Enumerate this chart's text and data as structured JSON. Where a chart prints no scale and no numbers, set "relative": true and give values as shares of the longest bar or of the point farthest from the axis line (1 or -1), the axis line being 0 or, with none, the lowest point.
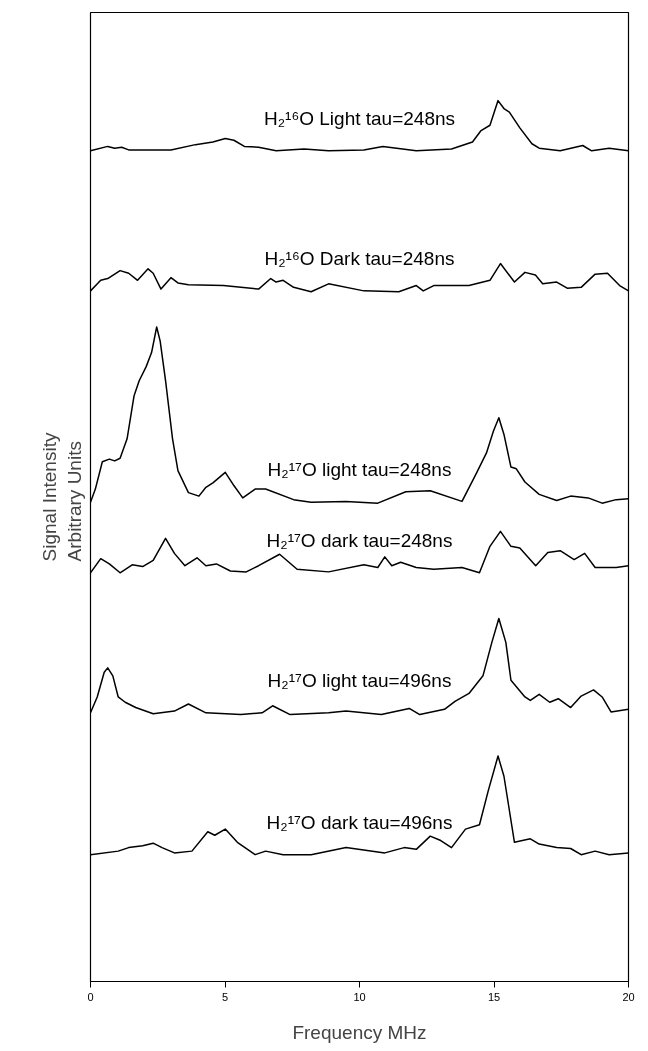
{
  "chart_data": {
    "type": "line",
    "relative": true,
    "xlabel": "Frequency MHz",
    "ylabel": "Signal Intensity\nArbitrary Units",
    "xlim": [
      0,
      20
    ],
    "xticks": [
      0,
      5,
      10,
      15,
      20
    ],
    "grid": false,
    "marker": "none",
    "line_style": "solid",
    "series": [
      {
        "name": "H₂¹⁶O Light tau=248ns",
        "color": "#000000",
        "x": [
          0,
          0.64,
          0.9,
          1.16,
          1.42,
          2.99,
          3.9,
          4.55,
          5.01,
          5.33,
          5.72,
          6.25,
          6.9,
          7.94,
          8.85,
          10.16,
          10.87,
          12.11,
          13.42,
          14.2,
          14.52,
          14.85,
          15.15,
          15.37,
          15.57,
          15.96,
          16.41,
          16.68,
          17.46,
          18.3,
          18.63,
          19.28,
          20
        ],
        "values": [
          0.943,
          0.948,
          0.946,
          0.947,
          0.944,
          0.944,
          0.95,
          0.953,
          0.957,
          0.955,
          0.948,
          0.947,
          0.943,
          0.945,
          0.943,
          0.944,
          0.948,
          0.943,
          0.945,
          0.953,
          0.966,
          0.972,
          1.0,
          0.991,
          0.987,
          0.969,
          0.951,
          0.946,
          0.943,
          0.949,
          0.943,
          0.946,
          0.943
        ]
      },
      {
        "name": "H₂¹⁶O Dark tau=248ns",
        "color": "#000000",
        "x": [
          0,
          0.38,
          0.64,
          1.1,
          1.42,
          1.75,
          2.14,
          2.33,
          2.62,
          2.99,
          3.25,
          3.64,
          4.94,
          6.25,
          6.7,
          6.9,
          7.16,
          7.55,
          8.2,
          8.85,
          10.16,
          11.46,
          12.11,
          12.37,
          12.76,
          14.07,
          14.85,
          15.24,
          15.76,
          16.15,
          16.54,
          16.81,
          17.33,
          17.72,
          18.24,
          18.76,
          19.22,
          19.67,
          20
        ],
        "values": [
          0.784,
          0.796,
          0.798,
          0.807,
          0.804,
          0.796,
          0.809,
          0.804,
          0.786,
          0.799,
          0.793,
          0.791,
          0.79,
          0.786,
          0.798,
          0.794,
          0.796,
          0.788,
          0.783,
          0.792,
          0.784,
          0.783,
          0.79,
          0.784,
          0.79,
          0.79,
          0.796,
          0.815,
          0.794,
          0.805,
          0.802,
          0.792,
          0.794,
          0.787,
          0.788,
          0.803,
          0.804,
          0.79,
          0.784
        ]
      },
      {
        "name": "H₂¹⁷O light tau=248ns",
        "color": "#000000",
        "x": [
          0,
          0.18,
          0.44,
          0.7,
          0.9,
          1.1,
          1.36,
          1.62,
          1.81,
          2.07,
          2.27,
          2.46,
          2.59,
          2.79,
          3.05,
          3.25,
          3.64,
          4.03,
          4.29,
          4.55,
          5.01,
          5.33,
          5.66,
          6.12,
          6.51,
          7.55,
          8.2,
          9.5,
          10.68,
          11.72,
          12.63,
          13.81,
          14.33,
          14.72,
          14.98,
          15.18,
          15.37,
          15.63,
          15.83,
          16.15,
          16.68,
          17.33,
          17.85,
          18.5,
          19.02,
          19.54,
          20
        ],
        "values": [
          0.544,
          0.559,
          0.59,
          0.593,
          0.591,
          0.594,
          0.616,
          0.665,
          0.682,
          0.698,
          0.714,
          0.743,
          0.727,
          0.682,
          0.616,
          0.58,
          0.555,
          0.551,
          0.561,
          0.566,
          0.578,
          0.563,
          0.549,
          0.559,
          0.559,
          0.547,
          0.544,
          0.545,
          0.543,
          0.556,
          0.557,
          0.545,
          0.576,
          0.6,
          0.625,
          0.64,
          0.621,
          0.584,
          0.582,
          0.567,
          0.553,
          0.546,
          0.551,
          0.549,
          0.543,
          0.547,
          0.548
        ]
      },
      {
        "name": "H₂¹⁷O dark tau=248ns",
        "color": "#000000",
        "x": [
          0,
          0.38,
          0.7,
          1.1,
          1.55,
          1.94,
          2.33,
          2.79,
          3.12,
          3.51,
          3.96,
          4.29,
          4.68,
          5.2,
          5.79,
          6.25,
          7.03,
          7.68,
          8.85,
          10.16,
          10.68,
          10.94,
          11.2,
          11.53,
          12.11,
          12.76,
          13.81,
          14.46,
          14.85,
          15.24,
          15.63,
          15.96,
          16.55,
          17.0,
          17.46,
          17.98,
          18.37,
          18.76,
          19.54,
          20
        ],
        "values": [
          0.464,
          0.48,
          0.474,
          0.464,
          0.473,
          0.471,
          0.478,
          0.503,
          0.486,
          0.472,
          0.481,
          0.472,
          0.474,
          0.466,
          0.465,
          0.472,
          0.485,
          0.468,
          0.465,
          0.473,
          0.47,
          0.482,
          0.472,
          0.476,
          0.47,
          0.468,
          0.47,
          0.464,
          0.494,
          0.511,
          0.494,
          0.492,
          0.472,
          0.487,
          0.489,
          0.479,
          0.486,
          0.47,
          0.47,
          0.472
        ]
      },
      {
        "name": "H₂¹⁷O light tau=496ns",
        "color": "#000000",
        "x": [
          0,
          0.25,
          0.51,
          0.64,
          0.83,
          1.03,
          1.29,
          1.68,
          2.33,
          3.12,
          3.64,
          4.29,
          5.59,
          6.38,
          6.77,
          7.42,
          8.85,
          9.5,
          10.81,
          11.85,
          12.24,
          13.16,
          13.55,
          14.07,
          14.59,
          14.92,
          15.18,
          15.44,
          15.63,
          16.15,
          16.35,
          16.68,
          17.07,
          17.39,
          17.85,
          18.24,
          18.7,
          19.02,
          19.35,
          20
        ],
        "values": [
          0.305,
          0.323,
          0.351,
          0.356,
          0.347,
          0.323,
          0.317,
          0.311,
          0.304,
          0.307,
          0.315,
          0.305,
          0.303,
          0.305,
          0.313,
          0.303,
          0.305,
          0.307,
          0.303,
          0.31,
          0.303,
          0.309,
          0.318,
          0.327,
          0.347,
          0.385,
          0.412,
          0.385,
          0.342,
          0.323,
          0.319,
          0.326,
          0.317,
          0.321,
          0.311,
          0.324,
          0.331,
          0.323,
          0.306,
          0.309
        ]
      },
      {
        "name": "H₂¹⁷O dark tau=496ns",
        "color": "#000000",
        "x": [
          0,
          1.03,
          1.42,
          1.94,
          2.33,
          2.66,
          3.12,
          3.77,
          4.36,
          4.62,
          5.01,
          5.46,
          6.12,
          6.51,
          7.16,
          8.2,
          9.5,
          10.94,
          11.66,
          12.11,
          12.63,
          13.02,
          13.42,
          13.94,
          14.46,
          14.79,
          15.15,
          15.37,
          15.76,
          16.35,
          16.68,
          17.33,
          17.85,
          18.24,
          18.76,
          19.28,
          20
        ],
        "values": [
          0.144,
          0.148,
          0.152,
          0.154,
          0.157,
          0.152,
          0.146,
          0.148,
          0.17,
          0.166,
          0.173,
          0.158,
          0.144,
          0.148,
          0.144,
          0.144,
          0.152,
          0.146,
          0.152,
          0.15,
          0.165,
          0.16,
          0.152,
          0.173,
          0.178,
          0.217,
          0.256,
          0.233,
          0.158,
          0.162,
          0.156,
          0.152,
          0.151,
          0.144,
          0.148,
          0.144,
          0.146
        ]
      }
    ]
  }
}
